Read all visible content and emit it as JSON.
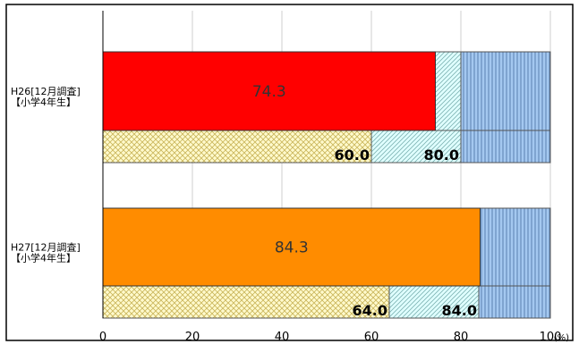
{
  "chart_data": {
    "type": "bar",
    "orientation": "horizontal",
    "categories": [
      [
        "H26[12月調査]",
        "【小学4年生】"
      ],
      [
        "H27[12月調査]",
        "【小学4年生】"
      ]
    ],
    "series": [
      {
        "values": [
          74.3,
          84.3
        ],
        "value_labels": [
          "74.3",
          "84.3"
        ],
        "colors": [
          "#ff0000",
          "#ff8c00"
        ]
      }
    ],
    "reference_bands": [
      {
        "ranges": [
          [
            0,
            60.0
          ],
          [
            0,
            64.0
          ]
        ],
        "pattern": "crosshatch",
        "color": "#fffacd"
      },
      {
        "ranges": [
          [
            60.0,
            80.0
          ],
          [
            64.0,
            84.0
          ]
        ],
        "pattern": "diagonal",
        "color": "#e0ffff"
      },
      {
        "ranges": [
          [
            80.0,
            100
          ],
          [
            84.0,
            100
          ]
        ],
        "pattern": "vertical",
        "color": "#a4c8f0"
      }
    ],
    "band_labels": [
      [
        "60.0",
        "80.0"
      ],
      [
        "64.0",
        "84.0"
      ]
    ],
    "xlim": [
      0,
      100
    ],
    "ticks": [
      "0",
      "20",
      "40",
      "60",
      "80",
      "100"
    ],
    "unit": "(%)",
    "grid": true,
    "legend": "none"
  }
}
